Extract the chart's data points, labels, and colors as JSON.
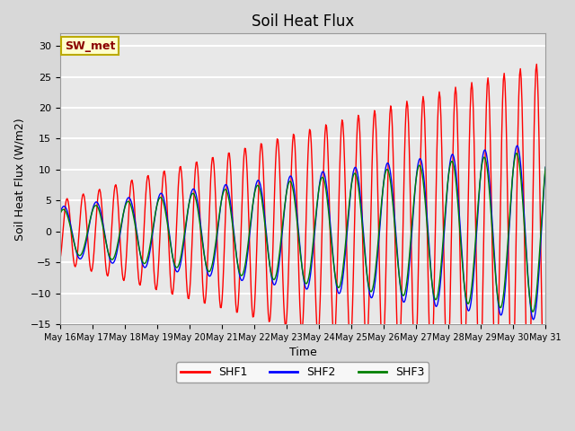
{
  "title": "Soil Heat Flux",
  "xlabel": "Time",
  "ylabel": "Soil Heat Flux (W/m2)",
  "ylim": [
    -15,
    32
  ],
  "yticks": [
    -15,
    -10,
    -5,
    0,
    5,
    10,
    15,
    20,
    25,
    30
  ],
  "background_color": "#d8d8d8",
  "plot_bg_color": "#e8e8e8",
  "grid_color": "white",
  "annotation_text": "SW_met",
  "annotation_bg": "#ffffcc",
  "annotation_border": "#bbaa00",
  "annotation_text_color": "#8b0000",
  "legend_entries": [
    "SHF1",
    "SHF2",
    "SHF3"
  ],
  "line_colors": [
    "red",
    "blue",
    "green"
  ],
  "x_tick_labels": [
    "May 16",
    "May 17",
    "May 18",
    "May 19",
    "May 20",
    "May 21",
    "May 22",
    "May 23",
    "May 24",
    "May 25",
    "May 26",
    "May 27",
    "May 28",
    "May 29",
    "May 30",
    "May 31"
  ]
}
